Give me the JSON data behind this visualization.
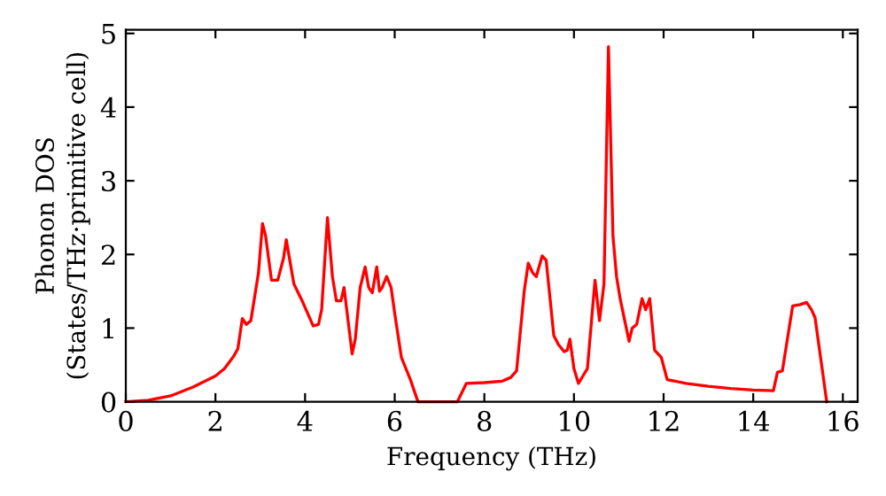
{
  "chart_data": {
    "type": "line",
    "xlabel": "Frequency (THz)",
    "ylabel": "Phonon DOS\n(States/THz·primitive cell)",
    "x": [
      0,
      0.5,
      1.0,
      1.5,
      2.0,
      2.2,
      2.41,
      2.5,
      2.6,
      2.69,
      2.79,
      2.96,
      3.05,
      3.12,
      3.25,
      3.39,
      3.52,
      3.58,
      3.75,
      3.95,
      4.18,
      4.3,
      4.37,
      4.5,
      4.61,
      4.7,
      4.8,
      4.87,
      4.96,
      5.05,
      5.12,
      5.23,
      5.34,
      5.42,
      5.5,
      5.6,
      5.66,
      5.72,
      5.82,
      5.92,
      6.0,
      6.15,
      6.35,
      6.52,
      7.4,
      7.6,
      8.0,
      8.4,
      8.59,
      8.72,
      8.89,
      8.98,
      9.08,
      9.16,
      9.29,
      9.38,
      9.55,
      9.65,
      9.78,
      9.85,
      9.91,
      10.0,
      10.1,
      10.2,
      10.3,
      10.47,
      10.57,
      10.67,
      10.77,
      10.87,
      10.95,
      11.03,
      11.23,
      11.3,
      11.4,
      11.52,
      11.6,
      11.69,
      11.8,
      11.95,
      12.08,
      12.5,
      13.0,
      13.5,
      14.0,
      14.45,
      14.54,
      14.65,
      14.88,
      15.05,
      15.19,
      15.3,
      15.38,
      15.64
    ],
    "series": [
      {
        "color": "#ff0000",
        "values": [
          0,
          0.02,
          0.08,
          0.2,
          0.35,
          0.45,
          0.62,
          0.72,
          1.13,
          1.05,
          1.1,
          1.75,
          2.42,
          2.25,
          1.65,
          1.65,
          1.95,
          2.2,
          1.6,
          1.35,
          1.03,
          1.05,
          1.25,
          2.5,
          1.7,
          1.37,
          1.37,
          1.55,
          1.1,
          0.65,
          0.85,
          1.55,
          1.83,
          1.55,
          1.48,
          1.83,
          1.5,
          1.55,
          1.7,
          1.55,
          1.2,
          0.6,
          0.3,
          0,
          0,
          0.25,
          0.26,
          0.28,
          0.33,
          0.42,
          1.5,
          1.88,
          1.75,
          1.7,
          1.98,
          1.92,
          0.9,
          0.78,
          0.68,
          0.7,
          0.85,
          0.45,
          0.25,
          0.35,
          0.45,
          1.65,
          1.1,
          1.6,
          4.82,
          2.25,
          1.7,
          1.4,
          0.82,
          1.0,
          1.05,
          1.4,
          1.25,
          1.4,
          0.7,
          0.6,
          0.3,
          0.25,
          0.21,
          0.18,
          0.16,
          0.15,
          0.4,
          0.42,
          1.3,
          1.32,
          1.35,
          1.25,
          1.14,
          0
        ]
      }
    ],
    "xlim": [
      0,
      16.33
    ],
    "ylim": [
      0,
      5.05
    ],
    "xticks": [
      0,
      2,
      4,
      6,
      8,
      10,
      12,
      14,
      16
    ],
    "yticks": [
      0,
      1,
      2,
      3,
      4,
      5
    ],
    "grid": false,
    "legend": false
  }
}
